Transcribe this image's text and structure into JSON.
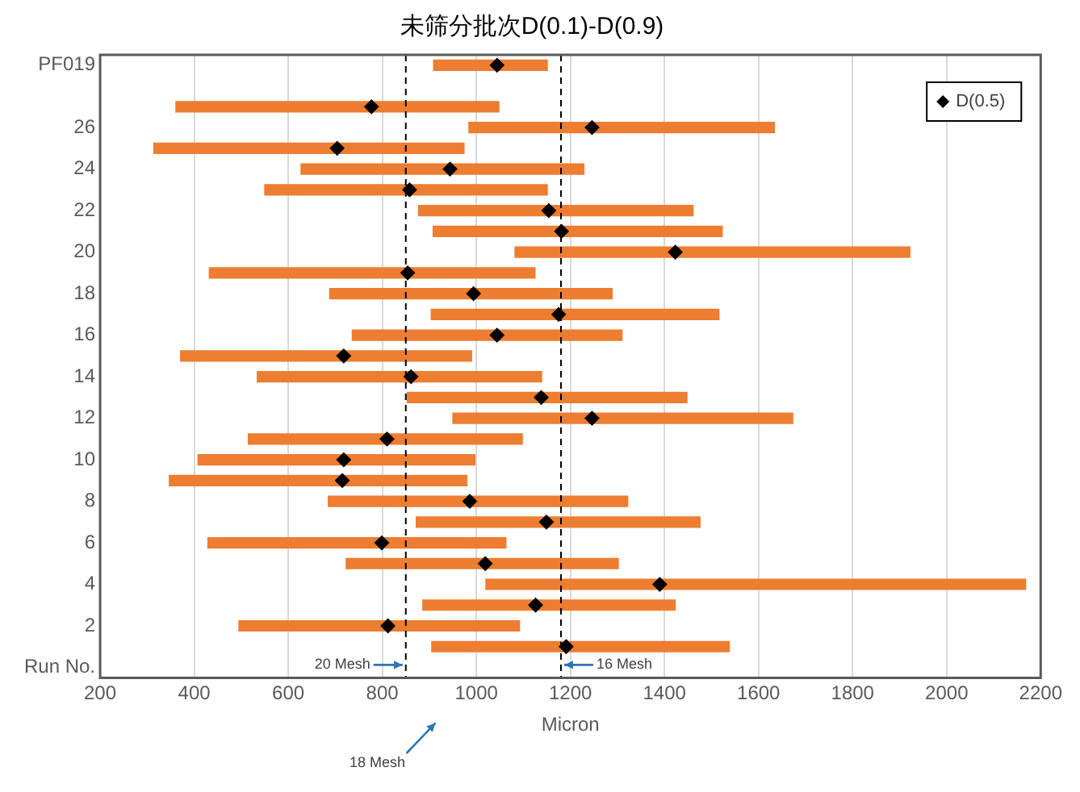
{
  "chart_data": {
    "type": "bar",
    "orientation": "horizontal",
    "title": "未筛分批次D(0.1)-D(0.9)",
    "xlabel": "Micron",
    "categories": [
      "PF019",
      null,
      null,
      "26",
      null,
      "24",
      null,
      "22",
      null,
      "20",
      null,
      "18",
      null,
      "16",
      null,
      "14",
      null,
      "12",
      null,
      "10",
      null,
      "8",
      null,
      "6",
      null,
      "4",
      null,
      "2",
      null,
      "Run No."
    ],
    "series": [
      {
        "color": "#ed7d31",
        "base": [
          908,
          null,
          360,
          983,
          313,
          626,
          549,
          876,
          907,
          1081,
          431,
          687,
          903,
          735,
          370,
          533,
          852,
          949,
          514,
          407,
          346,
          684,
          871,
          428,
          722,
          1019,
          885,
          494,
          904,
          null
        ],
        "values": [
          244,
          null,
          689,
          652,
          662,
          604,
          603,
          586,
          617,
          842,
          695,
          603,
          614,
          576,
          621,
          607,
          597,
          725,
          585,
          591,
          635,
          639,
          606,
          636,
          581,
          1150,
          539,
          599,
          635,
          null
        ]
      },
      {
        "type": "scatter",
        "name": "D(0.5)",
        "color": "#000000",
        "marker": "diamond",
        "values": [
          1044,
          null,
          777,
          1246,
          704,
          944,
          858,
          1154,
          1181,
          1423,
          854,
          994,
          1175,
          1044,
          718,
          861,
          1138,
          1246,
          810,
          718,
          715,
          986,
          1149,
          799,
          1019,
          1390,
          1126,
          812,
          1191,
          null
        ]
      }
    ],
    "xlim": [
      200,
      2200
    ],
    "xticks": [
      200,
      400,
      600,
      800,
      1000,
      1200,
      1400,
      1600,
      1800,
      2000,
      2200
    ],
    "grid": "x",
    "legend": "top right",
    "ref_lines": [
      {
        "axis": "x",
        "value": 850,
        "label": "20 Mesh",
        "line_style": "dashed",
        "color": "#000000"
      },
      {
        "axis": "x",
        "value": 1180,
        "label": "16 Mesh",
        "line_style": "dashed",
        "color": "#000000"
      }
    ],
    "annotations": [
      "18 Mesh"
    ]
  }
}
